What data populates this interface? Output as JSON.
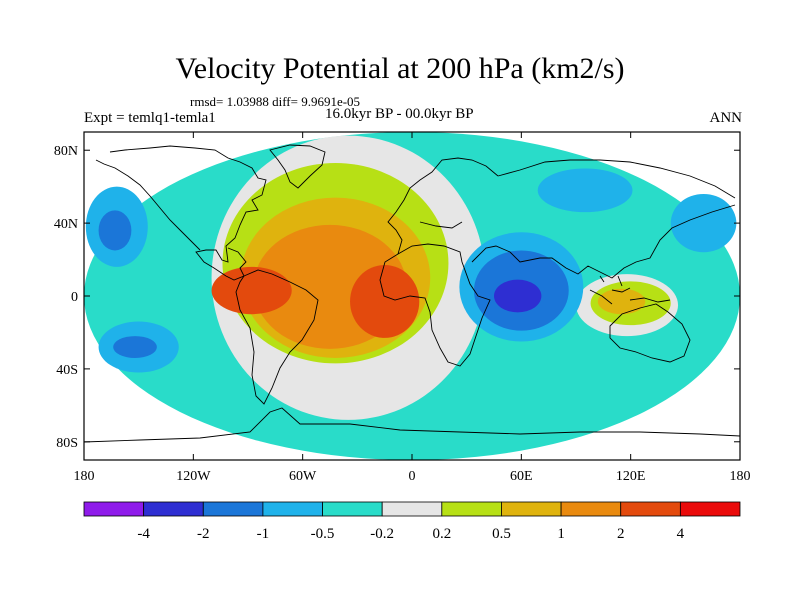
{
  "chart_data": {
    "type": "contour-map",
    "title": "Velocity Potential at 200 hPa (km2/s)",
    "rmsd_line": "rmsd= 1.03988 diff= 9.9691e-05",
    "experiment": "Expt = temlq1-temla1",
    "period": "16.0kyr BP - 00.0kyr BP",
    "season": "ANN",
    "lon_range": [
      -180,
      180
    ],
    "lat_range": [
      -90,
      90
    ],
    "x_ticks": [
      {
        "lon": -180,
        "label": "180"
      },
      {
        "lon": -120,
        "label": "120W"
      },
      {
        "lon": -60,
        "label": "60W"
      },
      {
        "lon": 0,
        "label": "0"
      },
      {
        "lon": 60,
        "label": "60E"
      },
      {
        "lon": 120,
        "label": "120E"
      },
      {
        "lon": 180,
        "label": "180"
      }
    ],
    "y_ticks": [
      {
        "lat": 80,
        "label": "80N"
      },
      {
        "lat": 40,
        "label": "40N"
      },
      {
        "lat": 0,
        "label": "0"
      },
      {
        "lat": -40,
        "label": "40S"
      },
      {
        "lat": -80,
        "label": "80S"
      }
    ],
    "levels": [
      "-4",
      "-2",
      "-1",
      "-0.5",
      "-0.2",
      "0.2",
      "0.5",
      "1",
      "2",
      "4"
    ],
    "colors": [
      "#8f1bea",
      "#2e2ed2",
      "#1b76d8",
      "#1fb2ea",
      "#29dcc9",
      "#e6e6e6",
      "#b7e015",
      "#dfb30e",
      "#e98a0f",
      "#e34a0d",
      "#ea0b0b"
    ],
    "regions": [
      {
        "name": "global-background",
        "level": 4,
        "center": [
          0,
          0
        ],
        "radius": [
          180,
          90
        ]
      },
      {
        "name": "atlantic-positive-envelope",
        "level": 5,
        "center": [
          -35,
          10
        ],
        "radius": [
          75,
          78
        ]
      },
      {
        "name": "atlantic-weak-positive",
        "level": 6,
        "center": [
          -42,
          18
        ],
        "radius": [
          62,
          55
        ]
      },
      {
        "name": "atlantic-positive",
        "level": 7,
        "center": [
          -42,
          10
        ],
        "radius": [
          52,
          44
        ]
      },
      {
        "name": "atlantic-strong-positive",
        "level": 8,
        "center": [
          -45,
          5
        ],
        "radius": [
          42,
          34
        ]
      },
      {
        "name": "caribbean-max",
        "level": 9,
        "center": [
          -88,
          3
        ],
        "radius": [
          22,
          13
        ]
      },
      {
        "name": "south-atlantic-max",
        "level": 9,
        "center": [
          -15,
          -3
        ],
        "radius": [
          19,
          20
        ]
      },
      {
        "name": "maritime-positive-envelope",
        "level": 5,
        "center": [
          118,
          -5
        ],
        "radius": [
          28,
          17
        ]
      },
      {
        "name": "maritime-weak-positive",
        "level": 6,
        "center": [
          120,
          -4
        ],
        "radius": [
          22,
          12
        ]
      },
      {
        "name": "maritime-positive",
        "level": 7,
        "center": [
          115,
          -3
        ],
        "radius": [
          13,
          7
        ]
      },
      {
        "name": "indian-ocean-negative",
        "level": 3,
        "center": [
          60,
          5
        ],
        "radius": [
          34,
          30
        ]
      },
      {
        "name": "indian-ocean-moderate-negative",
        "level": 2,
        "center": [
          60,
          3
        ],
        "radius": [
          26,
          22
        ]
      },
      {
        "name": "indian-ocean-min",
        "level": 1,
        "center": [
          58,
          0
        ],
        "radius": [
          13,
          9
        ]
      },
      {
        "name": "northeast-pacific-negative",
        "level": 3,
        "center": [
          -162,
          38
        ],
        "radius": [
          17,
          22
        ]
      },
      {
        "name": "northeast-pacific-min",
        "level": 2,
        "center": [
          -163,
          36
        ],
        "radius": [
          9,
          11
        ]
      },
      {
        "name": "south-pacific-negative",
        "level": 3,
        "center": [
          -150,
          -28
        ],
        "radius": [
          22,
          14
        ]
      },
      {
        "name": "south-pacific-moderate-negative",
        "level": 2,
        "center": [
          -152,
          -28
        ],
        "radius": [
          12,
          6
        ]
      },
      {
        "name": "north-pacific-negative",
        "level": 3,
        "center": [
          160,
          40
        ],
        "radius": [
          18,
          16
        ]
      },
      {
        "name": "east-asia-negative",
        "level": 3,
        "center": [
          95,
          58
        ],
        "radius": [
          26,
          12
        ]
      }
    ]
  }
}
